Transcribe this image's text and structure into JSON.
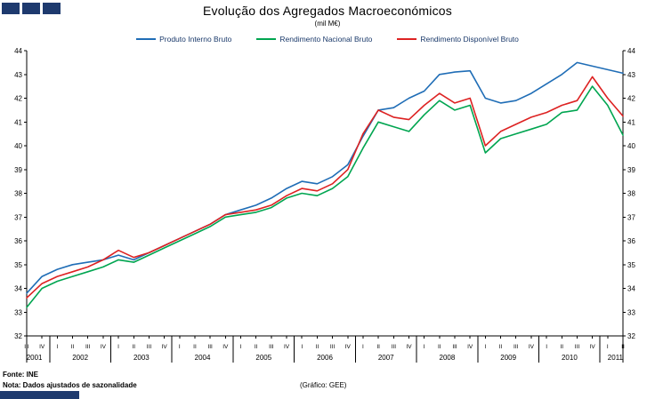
{
  "brand": {
    "navy": "#1e3a6e"
  },
  "header": {
    "title": "Evolução dos Agregados Macroeconómicos",
    "subtitle": "(mil M€)"
  },
  "chart_data": {
    "type": "line",
    "grid": false,
    "legend_position": "top",
    "dual_axis": true,
    "ylim": [
      32,
      44
    ],
    "y_tick_step": 1,
    "x_tick_labels": [
      "III",
      "IV",
      "I",
      "II",
      "III",
      "IV",
      "I",
      "II",
      "III",
      "IV",
      "I",
      "II",
      "III",
      "IV",
      "I",
      "II",
      "III",
      "IV",
      "I",
      "II",
      "III",
      "IV",
      "I",
      "II",
      "III",
      "IV",
      "I",
      "II",
      "III",
      "IV",
      "I",
      "II",
      "III",
      "IV",
      "I",
      "II",
      "III",
      "IV",
      "I",
      "II"
    ],
    "year_groups": [
      {
        "label": "2001",
        "count": 2
      },
      {
        "label": "2002",
        "count": 4
      },
      {
        "label": "2003",
        "count": 4
      },
      {
        "label": "2004",
        "count": 4
      },
      {
        "label": "2005",
        "count": 4
      },
      {
        "label": "2006",
        "count": 4
      },
      {
        "label": "2007",
        "count": 4
      },
      {
        "label": "2008",
        "count": 4
      },
      {
        "label": "2009",
        "count": 4
      },
      {
        "label": "2010",
        "count": 4
      },
      {
        "label": "2011",
        "count": 2
      }
    ],
    "series": [
      {
        "name": "Produto Interno Bruto",
        "color": "#1f6db6",
        "values": [
          33.8,
          34.5,
          34.8,
          35.0,
          35.1,
          35.2,
          35.4,
          35.2,
          35.5,
          35.8,
          36.1,
          36.4,
          36.7,
          37.1,
          37.3,
          37.5,
          37.8,
          38.2,
          38.5,
          38.4,
          38.7,
          39.2,
          40.4,
          41.5,
          41.6,
          42.0,
          42.3,
          43.0,
          43.1,
          43.15,
          42.0,
          41.8,
          41.9,
          42.2,
          42.6,
          43.0,
          43.5,
          43.35,
          43.2,
          43.05
        ]
      },
      {
        "name": "Rendimento Nacional Bruto",
        "color": "#00a550",
        "values": [
          33.2,
          34.0,
          34.3,
          34.5,
          34.7,
          34.9,
          35.2,
          35.1,
          35.4,
          35.7,
          36.0,
          36.3,
          36.6,
          37.0,
          37.1,
          37.2,
          37.4,
          37.8,
          38.0,
          37.9,
          38.2,
          38.7,
          39.9,
          41.0,
          40.8,
          40.6,
          41.3,
          41.9,
          41.5,
          41.7,
          39.7,
          40.3,
          40.5,
          40.7,
          40.9,
          41.4,
          41.5,
          42.5,
          41.7,
          40.45
        ]
      },
      {
        "name": "Rendimento Disponível Bruto",
        "color": "#dd2222",
        "values": [
          33.6,
          34.2,
          34.5,
          34.7,
          34.9,
          35.2,
          35.6,
          35.3,
          35.5,
          35.8,
          36.1,
          36.4,
          36.7,
          37.1,
          37.2,
          37.3,
          37.5,
          37.9,
          38.2,
          38.1,
          38.4,
          39.0,
          40.5,
          41.5,
          41.2,
          41.1,
          41.7,
          42.2,
          41.8,
          42.0,
          40.0,
          40.6,
          40.9,
          41.2,
          41.4,
          41.7,
          41.9,
          42.9,
          42.0,
          41.25
        ]
      }
    ]
  },
  "footer": {
    "source": "Fonte: INE",
    "note": "Nota: Dados ajustados de sazonalidade",
    "credit": "(Gráfico: GEE)"
  }
}
